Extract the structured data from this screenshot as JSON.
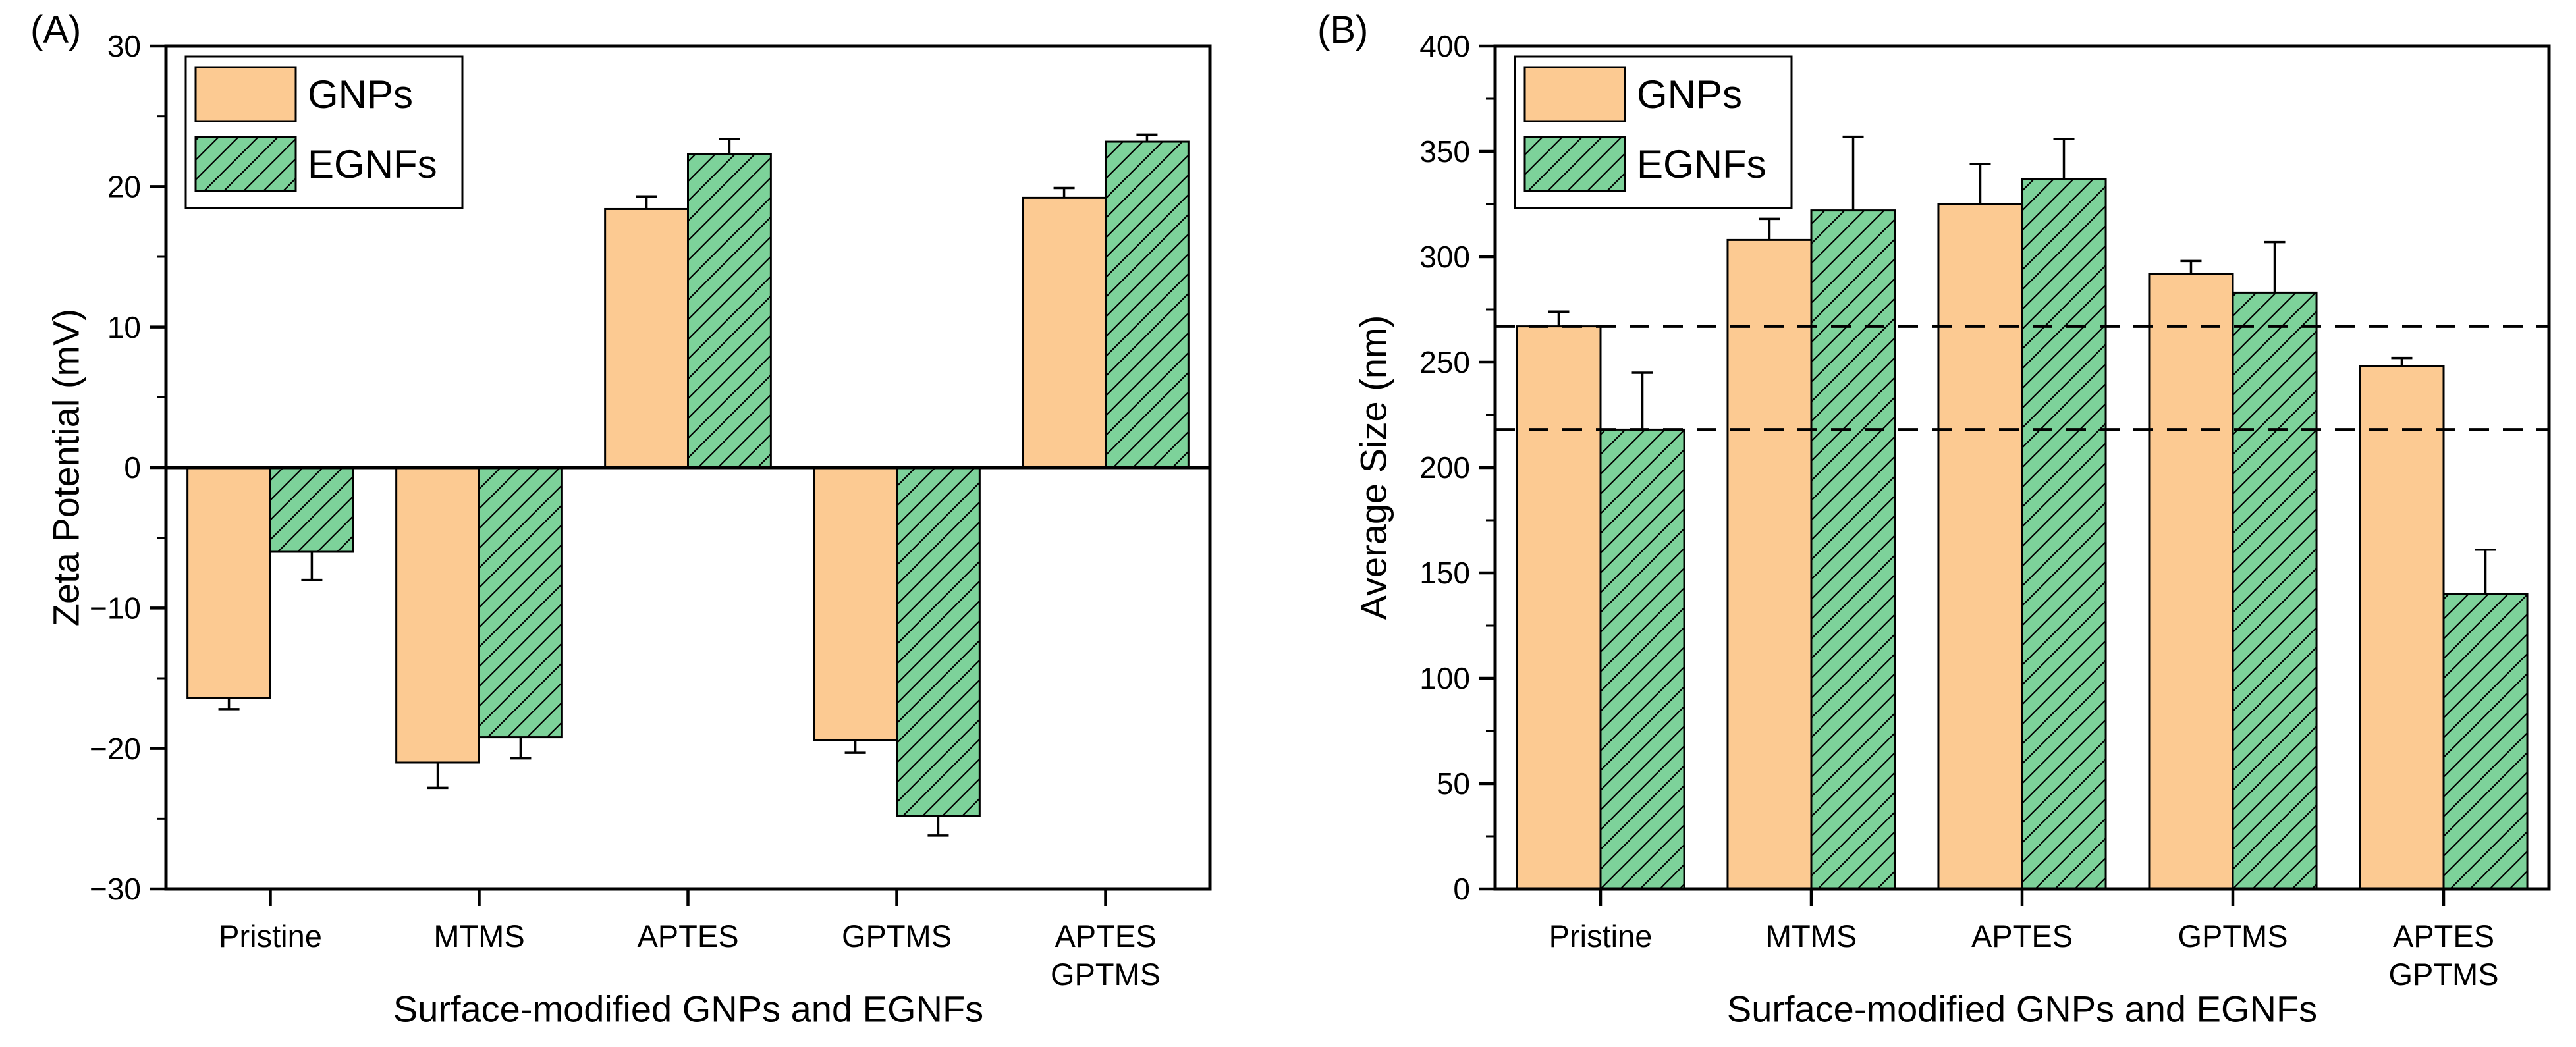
{
  "chart_data": [
    {
      "id": "A",
      "type": "bar",
      "panel_label": "(A)",
      "xlabel": "Surface-modified GNPs and EGNFs",
      "ylabel": "Zeta Potential (mV)",
      "ylim": [
        -30,
        30
      ],
      "ytick_values": [
        -30,
        -20,
        -10,
        0,
        10,
        20,
        30
      ],
      "ytick_labels": [
        "−30",
        "−20",
        "−10",
        "0",
        "10",
        "20",
        "30"
      ],
      "yminor_interval": 5,
      "categories": [
        "Pristine",
        "MTMS",
        "APTES",
        "GPTMS",
        "APTES GPTMS"
      ],
      "category_lines": [
        [
          "Pristine"
        ],
        [
          "MTMS"
        ],
        [
          "APTES"
        ],
        [
          "GPTMS"
        ],
        [
          "APTES",
          "GPTMS"
        ]
      ],
      "legend": {
        "position": "top-left",
        "items": [
          "GNPs",
          "EGNFs"
        ]
      },
      "series": [
        {
          "name": "GNPs",
          "fill": "#FCCA92",
          "hatch": false,
          "values": [
            -16.4,
            -21.0,
            18.4,
            -19.4,
            19.2
          ],
          "errors": [
            0.8,
            1.8,
            0.9,
            0.9,
            0.7
          ]
        },
        {
          "name": "EGNFs",
          "fill": "#7DD29A",
          "hatch": true,
          "values": [
            -6.0,
            -19.2,
            22.3,
            -24.8,
            23.2
          ],
          "errors": [
            2.0,
            1.5,
            1.1,
            1.4,
            0.5
          ]
        }
      ],
      "ref_lines": [],
      "edge_color": "#000000",
      "grid": false,
      "legend_position": "top-left"
    },
    {
      "id": "B",
      "type": "bar",
      "panel_label": "(B)",
      "xlabel": "Surface-modified GNPs and EGNFs",
      "ylabel": "Average Size (nm)",
      "ylim": [
        0,
        400
      ],
      "ytick_values": [
        0,
        50,
        100,
        150,
        200,
        250,
        300,
        350,
        400
      ],
      "ytick_labels": [
        "0",
        "50",
        "100",
        "150",
        "200",
        "250",
        "300",
        "350",
        "400"
      ],
      "yminor_interval": 25,
      "categories": [
        "Pristine",
        "MTMS",
        "APTES",
        "GPTMS",
        "APTES GPTMS"
      ],
      "category_lines": [
        [
          "Pristine"
        ],
        [
          "MTMS"
        ],
        [
          "APTES"
        ],
        [
          "GPTMS"
        ],
        [
          "APTES",
          "GPTMS"
        ]
      ],
      "legend": {
        "position": "top-left",
        "items": [
          "GNPs",
          "EGNFs"
        ]
      },
      "series": [
        {
          "name": "GNPs",
          "fill": "#FCCA92",
          "hatch": false,
          "values": [
            267,
            308,
            325,
            292,
            248
          ],
          "errors": [
            7,
            10,
            19,
            6,
            4
          ]
        },
        {
          "name": "EGNFs",
          "fill": "#7DD29A",
          "hatch": true,
          "values": [
            218,
            322,
            337,
            283,
            140
          ],
          "errors": [
            27,
            35,
            19,
            24,
            21
          ]
        }
      ],
      "ref_lines": [
        267,
        218
      ],
      "edge_color": "#000000",
      "grid": false,
      "legend_position": "top-left"
    }
  ]
}
